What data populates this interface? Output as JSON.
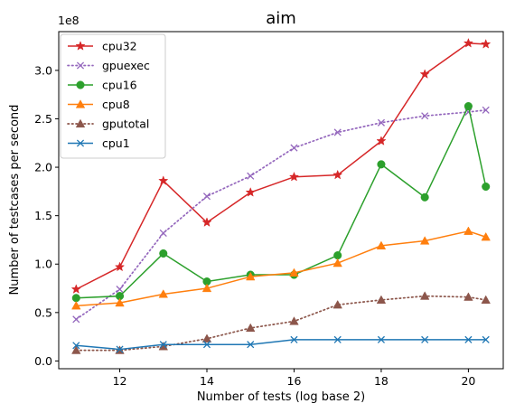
{
  "chart_data": {
    "type": "line",
    "title": "aim",
    "xlabel": "Number of tests (log base 2)",
    "ylabel": "Number of testcases per second",
    "offset_text": "1e8",
    "xlim": [
      10.6,
      20.8
    ],
    "ylim": [
      -0.08,
      3.4
    ],
    "xticks": [
      12,
      14,
      16,
      18,
      20
    ],
    "yticks": [
      0.0,
      0.5,
      1.0,
      1.5,
      2.0,
      2.5,
      3.0
    ],
    "ytick_labels": [
      "0.0",
      "0.5",
      "1.0",
      "1.5",
      "2.0",
      "2.5",
      "3.0"
    ],
    "grid": false,
    "legend_position": "upper-left",
    "series": [
      {
        "name": "cpu32",
        "color": "#d62728",
        "style": "solid",
        "marker": "star",
        "x": [
          11,
          12,
          13,
          14,
          15,
          16,
          17,
          18,
          19,
          20,
          20.4
        ],
        "y": [
          0.74,
          0.97,
          1.86,
          1.43,
          1.74,
          1.9,
          1.92,
          2.27,
          2.96,
          3.28,
          3.27
        ]
      },
      {
        "name": "gpuexec",
        "color": "#9467bd",
        "style": "dotted",
        "marker": "x",
        "x": [
          11,
          12,
          13,
          14,
          15,
          16,
          17,
          18,
          19,
          20,
          20.4
        ],
        "y": [
          0.43,
          0.74,
          1.32,
          1.7,
          1.91,
          2.2,
          2.36,
          2.46,
          2.53,
          2.57,
          2.59
        ]
      },
      {
        "name": "cpu16",
        "color": "#2ca02c",
        "style": "solid",
        "marker": "circle",
        "x": [
          11,
          12,
          13,
          14,
          15,
          16,
          17,
          18,
          19,
          20,
          20.4
        ],
        "y": [
          0.65,
          0.67,
          1.11,
          0.82,
          0.89,
          0.89,
          1.09,
          2.03,
          1.69,
          2.63,
          1.8
        ]
      },
      {
        "name": "cpu8",
        "color": "#ff7f0e",
        "style": "solid",
        "marker": "triangle",
        "x": [
          11,
          12,
          13,
          14,
          15,
          16,
          17,
          18,
          19,
          20,
          20.4
        ],
        "y": [
          0.57,
          0.6,
          0.69,
          0.75,
          0.87,
          0.91,
          1.01,
          1.19,
          1.24,
          1.34,
          1.28
        ]
      },
      {
        "name": "gputotal",
        "color": "#8c564b",
        "style": "dotted",
        "marker": "triangle",
        "x": [
          11,
          12,
          13,
          14,
          15,
          16,
          17,
          18,
          19,
          20,
          20.4
        ],
        "y": [
          0.11,
          0.11,
          0.15,
          0.23,
          0.34,
          0.41,
          0.58,
          0.63,
          0.67,
          0.66,
          0.63
        ]
      },
      {
        "name": "cpu1",
        "color": "#1f77b4",
        "style": "solid",
        "marker": "x",
        "x": [
          11,
          12,
          13,
          14,
          15,
          16,
          17,
          18,
          19,
          20,
          20.4
        ],
        "y": [
          0.16,
          0.12,
          0.17,
          0.17,
          0.17,
          0.22,
          0.22,
          0.22,
          0.22,
          0.22,
          0.22
        ]
      }
    ]
  }
}
